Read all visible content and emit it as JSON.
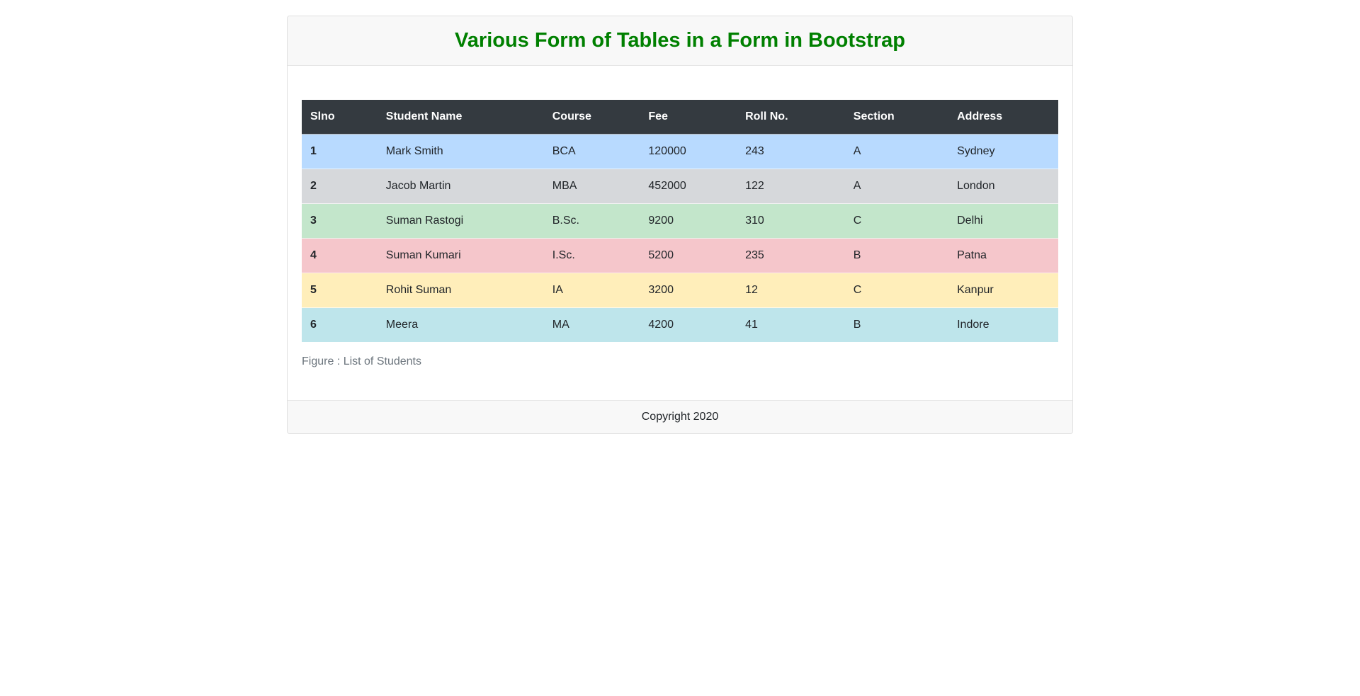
{
  "header": {
    "title": "Various Form of Tables in a Form in Bootstrap",
    "title_color": "#008000"
  },
  "table": {
    "columns": [
      "Slno",
      "Student Name",
      "Course",
      "Fee",
      "Roll No.",
      "Section",
      "Address"
    ],
    "rows": [
      {
        "slno": "1",
        "name": "Mark Smith",
        "course": "BCA",
        "fee": "120000",
        "roll": "243",
        "section": "A",
        "address": "Sydney",
        "variant": "primary"
      },
      {
        "slno": "2",
        "name": "Jacob Martin",
        "course": "MBA",
        "fee": "452000",
        "roll": "122",
        "section": "A",
        "address": "London",
        "variant": "secondary"
      },
      {
        "slno": "3",
        "name": "Suman Rastogi",
        "course": "B.Sc.",
        "fee": "9200",
        "roll": "310",
        "section": "C",
        "address": "Delhi",
        "variant": "success"
      },
      {
        "slno": "4",
        "name": "Suman Kumari",
        "course": "I.Sc.",
        "fee": "5200",
        "roll": "235",
        "section": "B",
        "address": "Patna",
        "variant": "danger"
      },
      {
        "slno": "5",
        "name": "Rohit Suman",
        "course": "IA",
        "fee": "3200",
        "roll": "12",
        "section": "C",
        "address": "Kanpur",
        "variant": "warning"
      },
      {
        "slno": "6",
        "name": "Meera",
        "course": "MA",
        "fee": "4200",
        "roll": "41",
        "section": "B",
        "address": "Indore",
        "variant": "info"
      }
    ],
    "caption": "Figure : List of Students"
  },
  "footer": {
    "text": "Copyright 2020"
  },
  "colors": {
    "header_bg": "#343a40",
    "header_text": "#ffffff",
    "row_variants": {
      "primary": "#b8daff",
      "secondary": "#d6d8db",
      "success": "#c3e6cb",
      "danger": "#f5c6cb",
      "warning": "#ffeeba",
      "info": "#bee5eb"
    }
  }
}
